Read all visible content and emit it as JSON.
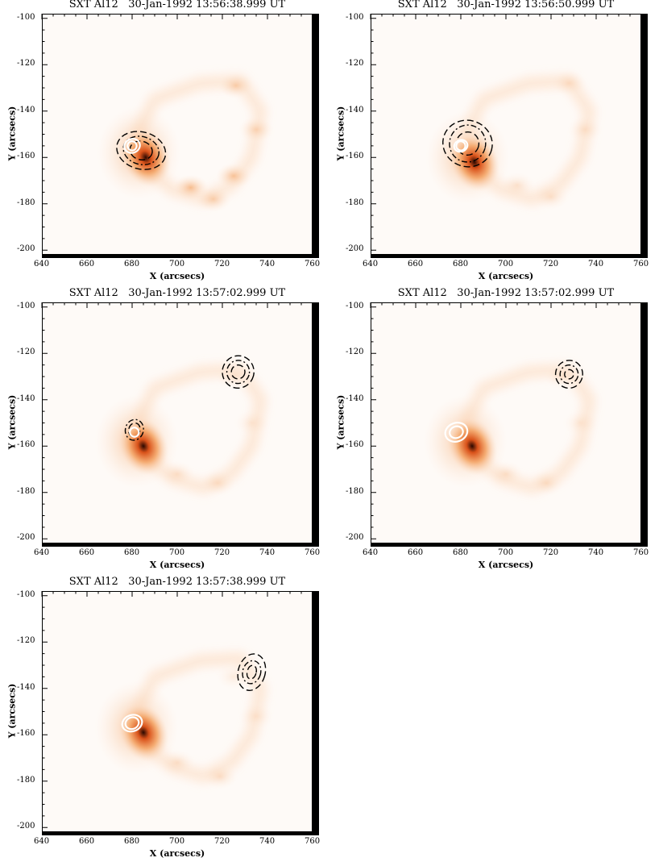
{
  "axes": {
    "xlabel": "X (arcsecs)",
    "ylabel": "Y (arcsecs)",
    "xlim": [
      640,
      760
    ],
    "ylim": [
      -202,
      -98
    ],
    "xticks": [
      "640",
      "660",
      "680",
      "700",
      "720",
      "740",
      "760"
    ],
    "yticks": [
      "-100",
      "-120",
      "-140",
      "-160",
      "-180",
      "-200"
    ]
  },
  "panels": [
    {
      "title": "SXT Al12   30-Jan-1992 13:56:38.999 UT",
      "bright_core": {
        "x": 686,
        "y": -160
      },
      "loop_blobs": [
        {
          "x": 726,
          "y": -129,
          "w": 0.55
        },
        {
          "x": 706,
          "y": -173,
          "w": 0.8
        },
        {
          "x": 725,
          "y": -168,
          "w": 0.7
        },
        {
          "x": 735,
          "y": -148,
          "w": 0.45
        },
        {
          "x": 716,
          "y": -178,
          "w": 0.55
        }
      ],
      "black_contours": [
        {
          "x": 684,
          "y": -157,
          "rx": [
            5,
            8,
            11
          ],
          "ry": [
            4,
            6,
            8
          ]
        }
      ],
      "white_contours": [
        {
          "x": 680,
          "y": -155,
          "rx": [
            2,
            3.5
          ],
          "ry": [
            2,
            3
          ]
        }
      ]
    },
    {
      "title": "SXT Al12   30-Jan-1992 13:56:50.999 UT",
      "bright_core": {
        "x": 686,
        "y": -162
      },
      "loop_blobs": [
        {
          "x": 728,
          "y": -128,
          "w": 0.3
        },
        {
          "x": 735,
          "y": -148,
          "w": 0.25
        },
        {
          "x": 720,
          "y": -177,
          "w": 0.3
        },
        {
          "x": 705,
          "y": -172,
          "w": 0.3
        }
      ],
      "black_contours": [
        {
          "x": 683,
          "y": -154,
          "rx": [
            5,
            8,
            11
          ],
          "ry": [
            5,
            8,
            10
          ]
        }
      ],
      "white_contours": [
        {
          "x": 680,
          "y": -155,
          "rx": [
            2,
            3
          ],
          "ry": [
            2,
            2.5
          ]
        }
      ]
    },
    {
      "title": "SXT Al12   30-Jan-1992 13:57:02.999 UT",
      "bright_core": {
        "x": 685,
        "y": -160
      },
      "loop_blobs": [
        {
          "x": 725,
          "y": -130,
          "w": 0.25
        },
        {
          "x": 733,
          "y": -150,
          "w": 0.2
        },
        {
          "x": 718,
          "y": -176,
          "w": 0.3
        },
        {
          "x": 700,
          "y": -172,
          "w": 0.3
        }
      ],
      "black_contours": [
        {
          "x": 727,
          "y": -128,
          "rx": [
            3,
            5,
            7
          ],
          "ry": [
            3,
            5,
            7
          ]
        },
        {
          "x": 681,
          "y": -153,
          "rx": [
            2.5,
            4
          ],
          "ry": [
            3,
            4.5
          ]
        }
      ],
      "white_contours": [
        {
          "x": 681,
          "y": -154,
          "rx": [
            2
          ],
          "ry": [
            2
          ]
        }
      ]
    },
    {
      "title": "SXT Al12   30-Jan-1992 13:57:02.999 UT",
      "bright_core": {
        "x": 685,
        "y": -160
      },
      "loop_blobs": [
        {
          "x": 725,
          "y": -130,
          "w": 0.25
        },
        {
          "x": 733,
          "y": -150,
          "w": 0.2
        },
        {
          "x": 718,
          "y": -176,
          "w": 0.3
        },
        {
          "x": 700,
          "y": -172,
          "w": 0.3
        }
      ],
      "black_contours": [
        {
          "x": 728,
          "y": -129,
          "rx": [
            2,
            4,
            6
          ],
          "ry": [
            2,
            4,
            6
          ]
        }
      ],
      "white_contours": [
        {
          "x": 678,
          "y": -154,
          "rx": [
            3,
            5
          ],
          "ry": [
            2.5,
            4
          ]
        }
      ]
    },
    {
      "title": "SXT Al12   30-Jan-1992 13:57:38.999 UT",
      "bright_core": {
        "x": 685,
        "y": -159
      },
      "loop_blobs": [
        {
          "x": 725,
          "y": -135,
          "w": 0.2
        },
        {
          "x": 735,
          "y": -152,
          "w": 0.2
        },
        {
          "x": 719,
          "y": -178,
          "w": 0.35
        },
        {
          "x": 700,
          "y": -172,
          "w": 0.3
        }
      ],
      "black_contours": [
        {
          "x": 733,
          "y": -133,
          "rx": [
            2,
            4,
            6
          ],
          "ry": [
            3,
            5,
            8
          ]
        }
      ],
      "white_contours": [
        {
          "x": 680,
          "y": -155,
          "rx": [
            3,
            4.5
          ],
          "ry": [
            2.5,
            3.5
          ]
        }
      ]
    }
  ],
  "colors": {
    "frame": "#000000",
    "background": "#fefaf7",
    "emission_low": "#fde6d4",
    "emission_mid": "#f4a76a",
    "emission_high": "#d9521a",
    "emission_peak": "#2a0800"
  }
}
